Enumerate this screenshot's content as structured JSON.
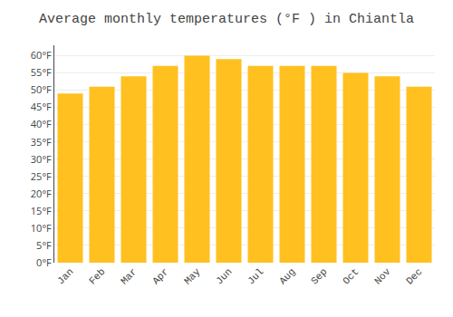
{
  "chart_data": {
    "type": "bar",
    "title": "Average monthly temperatures (°F ) in Chiantla",
    "categories": [
      "Jan",
      "Feb",
      "Mar",
      "Apr",
      "May",
      "Jun",
      "Jul",
      "Aug",
      "Sep",
      "Oct",
      "Nov",
      "Dec"
    ],
    "values": [
      49,
      51,
      54,
      57,
      60,
      59,
      57,
      57,
      57,
      55,
      54,
      51
    ],
    "color": "#FFC020",
    "ylim": [
      0,
      63
    ],
    "yticks": [
      {
        "value": 0,
        "label": "0°F"
      },
      {
        "value": 5,
        "label": "5°F"
      },
      {
        "value": 10,
        "label": "10°F"
      },
      {
        "value": 15,
        "label": "15°F"
      },
      {
        "value": 20,
        "label": "20°F"
      },
      {
        "value": 25,
        "label": "25°F"
      },
      {
        "value": 30,
        "label": "30°F"
      },
      {
        "value": 35,
        "label": "35°F"
      },
      {
        "value": 40,
        "label": "40°F"
      },
      {
        "value": 45,
        "label": "45°F"
      },
      {
        "value": 50,
        "label": "50°F"
      },
      {
        "value": 55,
        "label": "55°F"
      },
      {
        "value": 60,
        "label": "60°F"
      }
    ],
    "grid": true
  }
}
